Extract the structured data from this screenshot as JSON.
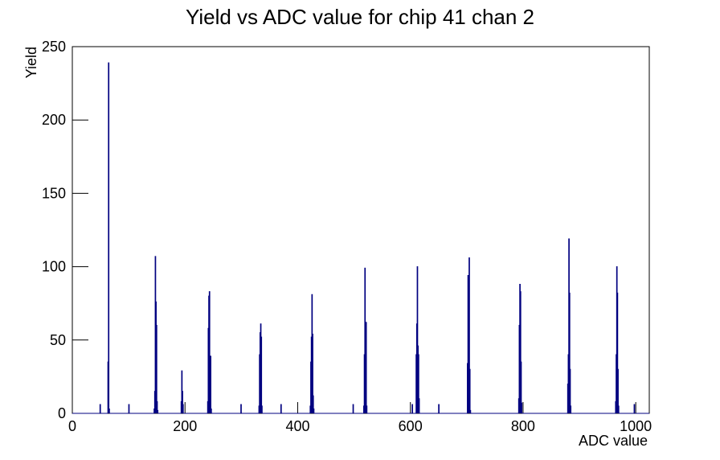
{
  "chart_data": {
    "type": "histogram",
    "title": "Yield vs ADC value for chip 41 chan 2",
    "x_label": "ADC value",
    "y_label": "Yield",
    "color": "#000080",
    "xlim": [
      0,
      1024
    ],
    "ylim": [
      0,
      250
    ],
    "xticks": [
      0,
      200,
      400,
      600,
      800,
      1000
    ],
    "yticks": [
      0,
      50,
      100,
      150,
      200,
      250
    ],
    "bins": [
      0,
      49,
      50,
      63,
      64,
      65,
      66,
      100,
      101,
      145,
      146,
      147,
      148,
      149,
      150,
      151,
      152,
      193,
      194,
      195,
      196,
      197,
      240,
      241,
      242,
      243,
      244,
      245,
      246,
      247,
      299,
      300,
      331,
      332,
      333,
      334,
      335,
      336,
      337,
      370,
      371,
      422,
      423,
      424,
      425,
      426,
      427,
      428,
      429,
      498,
      499,
      517,
      518,
      519,
      520,
      521,
      522,
      523,
      603,
      604,
      610,
      611,
      612,
      613,
      614,
      615,
      616,
      650,
      651,
      701,
      702,
      703,
      704,
      705,
      706,
      707,
      792,
      793,
      794,
      795,
      796,
      797,
      798,
      879,
      880,
      881,
      882,
      883,
      884,
      885,
      964,
      965,
      966,
      967,
      968,
      969,
      970,
      997,
      998,
      1024
    ],
    "counts": [
      0,
      6,
      0,
      35,
      239,
      3,
      0,
      6,
      0,
      3,
      15,
      107,
      76,
      60,
      8,
      2,
      0,
      8,
      29,
      15,
      6,
      0,
      8,
      58,
      80,
      83,
      22,
      39,
      3,
      0,
      6,
      0,
      5,
      40,
      55,
      61,
      52,
      5,
      0,
      6,
      0,
      5,
      35,
      52,
      81,
      54,
      12,
      3,
      0,
      6,
      0,
      5,
      40,
      99,
      62,
      62,
      5,
      0,
      6,
      0,
      40,
      61,
      100,
      46,
      40,
      10,
      0,
      6,
      0,
      34,
      94,
      10,
      106,
      30,
      2,
      0,
      10,
      60,
      88,
      83,
      35,
      7,
      0,
      20,
      40,
      119,
      82,
      30,
      5,
      0,
      8,
      40,
      100,
      82,
      30,
      5,
      0,
      6,
      0
    ]
  }
}
